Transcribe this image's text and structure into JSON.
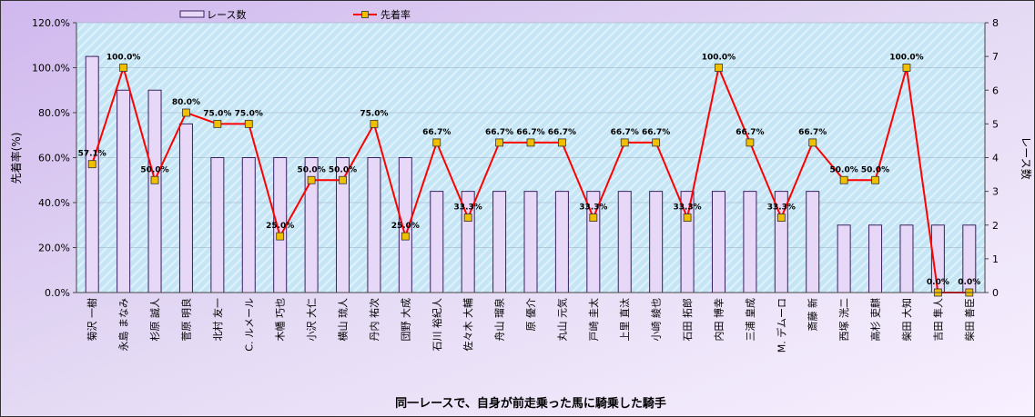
{
  "chart_data": {
    "type": "bar",
    "title": "",
    "xlabel": "同一レースで、自身が前走乗った馬に騎乗した騎手",
    "ylabel_left": "先着率(%)",
    "ylabel_right": "レース数",
    "left_axis": {
      "min": 0,
      "max": 120,
      "step": 20,
      "tick_labels": [
        "0.0%",
        "20.0%",
        "40.0%",
        "60.0%",
        "80.0%",
        "100.0%",
        "120.0%"
      ]
    },
    "right_axis": {
      "min": 0,
      "max": 8,
      "step": 1,
      "tick_labels": [
        "0",
        "1",
        "2",
        "3",
        "4",
        "5",
        "6",
        "7",
        "8"
      ]
    },
    "legend_position": "top",
    "categories": [
      "菊沢 一樹",
      "永島 まなみ",
      "杉原 誠人",
      "菅原 明良",
      "北村 友一",
      "C. ルメール",
      "木幡 巧也",
      "小沢 大仁",
      "横山 琉人",
      "丹内 祐次",
      "団野 大成",
      "石川 裕紀人",
      "佐々木 大輔",
      "舟山 瑠泉",
      "原 優介",
      "丸山 元気",
      "戸崎 圭太",
      "上里 直汰",
      "小崎 綾也",
      "石田 拓郎",
      "内田 博幸",
      "三浦 皇成",
      "M. デムーロ",
      "斎藤 新",
      "西塚 洸二",
      "高杉 吏麒",
      "柴田 大知",
      "吉田 隼人",
      "柴田 善臣"
    ],
    "series": [
      {
        "name": "レース数",
        "type": "bar",
        "axis": "right",
        "color": "#e8d8f8",
        "border": "#3a2060",
        "values": [
          7,
          6,
          6,
          5,
          4,
          4,
          4,
          4,
          4,
          4,
          4,
          3,
          3,
          3,
          3,
          3,
          3,
          3,
          3,
          3,
          3,
          3,
          3,
          3,
          2,
          2,
          2,
          2,
          2
        ]
      },
      {
        "name": "先着率",
        "type": "line",
        "axis": "left",
        "color": "#ff0000",
        "marker_color": "#f0c000",
        "values": [
          57.1,
          100.0,
          50.0,
          80.0,
          75.0,
          75.0,
          25.0,
          50.0,
          50.0,
          75.0,
          25.0,
          66.7,
          33.3,
          66.7,
          66.7,
          66.7,
          33.3,
          66.7,
          66.7,
          33.3,
          100.0,
          66.7,
          33.3,
          66.7,
          50.0,
          50.0,
          100.0,
          0.0,
          0.0
        ],
        "labels": [
          "57.1%",
          "100.0%",
          "50.0%",
          "80.0%",
          "75.0%",
          "75.0%",
          "25.0%",
          "50.0%",
          "50.0%",
          "75.0%",
          "25.0%",
          "66.7%",
          "33.3%",
          "66.7%",
          "66.7%",
          "66.7%",
          "33.3%",
          "66.7%",
          "66.7%",
          "33.3%",
          "100.0%",
          "66.7%",
          "33.3%",
          "66.7%",
          "50.0%",
          "50.0%",
          "100.0%",
          "0.0%",
          "0.0%"
        ]
      }
    ]
  }
}
